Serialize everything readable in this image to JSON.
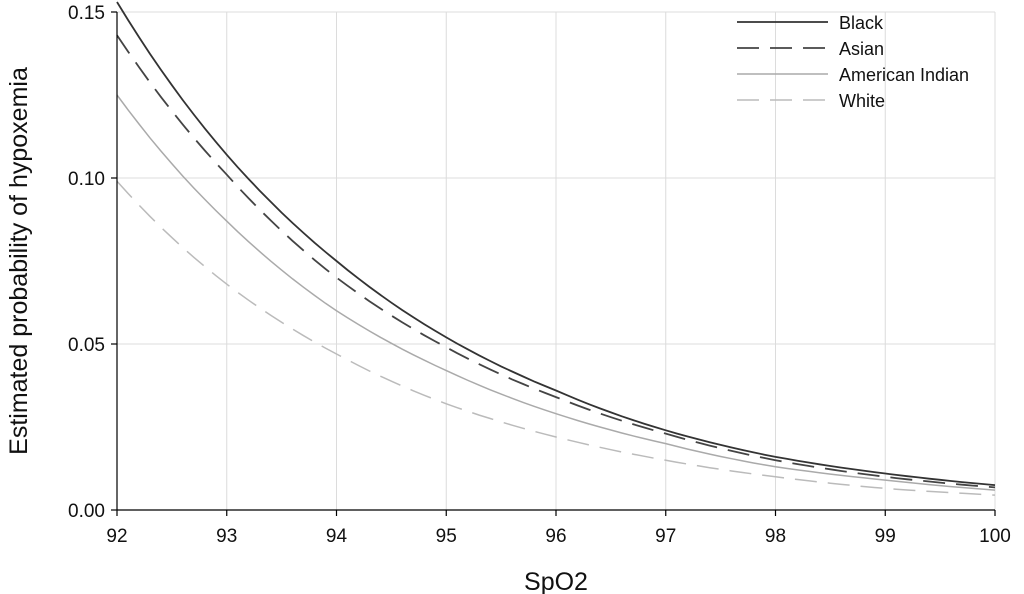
{
  "chart_data": {
    "type": "line",
    "title": "",
    "xlabel": "SpO2",
    "ylabel": "Estimated probability of hypoxemia",
    "xlim": [
      92,
      100
    ],
    "ylim": [
      0,
      0.15
    ],
    "x_ticks": [
      92,
      93,
      94,
      95,
      96,
      97,
      98,
      99,
      100
    ],
    "x_tick_labels": [
      "92",
      "93",
      "94",
      "95",
      "96",
      "97",
      "98",
      "99",
      "100"
    ],
    "y_ticks": [
      0,
      0.05,
      0.1,
      0.15
    ],
    "y_tick_labels": [
      "0.00",
      "0.05",
      "0.10",
      "0.15"
    ],
    "grid": true,
    "legend_position": "top-right",
    "x": [
      92,
      93,
      94,
      95,
      96,
      97,
      98,
      99,
      100
    ],
    "series": [
      {
        "name": "Black",
        "style": "solid",
        "color": "#333333",
        "values": [
          0.153,
          0.107,
          0.075,
          0.052,
          0.036,
          0.024,
          0.016,
          0.011,
          0.0075
        ]
      },
      {
        "name": "Asian",
        "style": "dashed",
        "color": "#444444",
        "values": [
          0.143,
          0.101,
          0.07,
          0.049,
          0.034,
          0.023,
          0.015,
          0.01,
          0.0068
        ]
      },
      {
        "name": "American Indian",
        "style": "solid",
        "color": "#aaaaaa",
        "values": [
          0.125,
          0.087,
          0.06,
          0.042,
          0.029,
          0.02,
          0.013,
          0.009,
          0.006
        ]
      },
      {
        "name": "White",
        "style": "dashed",
        "color": "#bbbbbb",
        "values": [
          0.099,
          0.068,
          0.047,
          0.032,
          0.022,
          0.015,
          0.01,
          0.0065,
          0.0045
        ]
      }
    ]
  }
}
